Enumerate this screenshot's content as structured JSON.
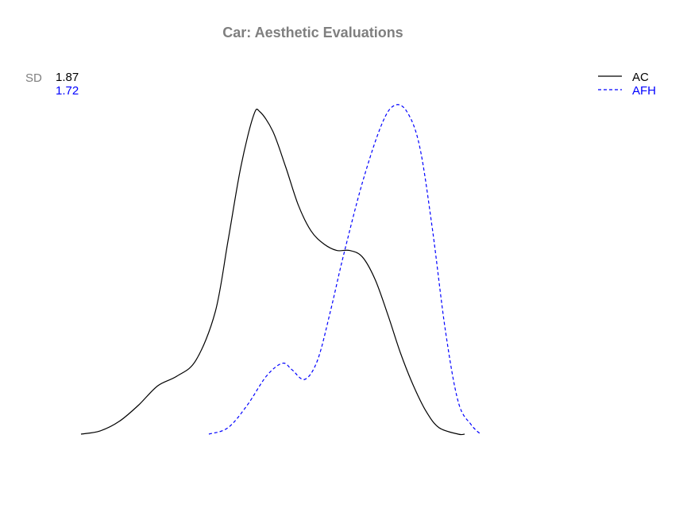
{
  "chart_data": {
    "type": "line",
    "title": "Car: Aesthetic Evaluations",
    "xlabel": "",
    "ylabel": "",
    "grid": false,
    "axes_visible": false,
    "legend_position": "top-right",
    "stat_label": "SD",
    "series": [
      {
        "name": "AC",
        "color": "#000000",
        "line_style": "solid",
        "sd": "1.87",
        "points": [
          [
            0.0,
            0.0
          ],
          [
            0.3,
            0.01
          ],
          [
            0.6,
            0.04
          ],
          [
            0.9,
            0.09
          ],
          [
            1.2,
            0.15
          ],
          [
            1.5,
            0.18
          ],
          [
            1.8,
            0.23
          ],
          [
            2.1,
            0.38
          ],
          [
            2.3,
            0.6
          ],
          [
            2.5,
            0.83
          ],
          [
            2.7,
            0.99
          ],
          [
            2.8,
            1.0
          ],
          [
            3.0,
            0.94
          ],
          [
            3.2,
            0.83
          ],
          [
            3.4,
            0.71
          ],
          [
            3.6,
            0.63
          ],
          [
            3.8,
            0.59
          ],
          [
            4.0,
            0.57
          ],
          [
            4.2,
            0.57
          ],
          [
            4.4,
            0.55
          ],
          [
            4.6,
            0.48
          ],
          [
            4.8,
            0.37
          ],
          [
            5.0,
            0.25
          ],
          [
            5.2,
            0.15
          ],
          [
            5.4,
            0.07
          ],
          [
            5.6,
            0.02
          ],
          [
            5.9,
            0.0
          ],
          [
            6.0,
            0.0
          ]
        ]
      },
      {
        "name": "AFH",
        "color": "#0000ff",
        "line_style": "dashed",
        "sd": "1.72",
        "points": [
          [
            2.0,
            0.0
          ],
          [
            2.3,
            0.02
          ],
          [
            2.6,
            0.09
          ],
          [
            2.9,
            0.18
          ],
          [
            3.15,
            0.22
          ],
          [
            3.3,
            0.2
          ],
          [
            3.5,
            0.17
          ],
          [
            3.7,
            0.23
          ],
          [
            3.9,
            0.38
          ],
          [
            4.1,
            0.55
          ],
          [
            4.4,
            0.78
          ],
          [
            4.7,
            0.96
          ],
          [
            4.9,
            1.02
          ],
          [
            5.1,
            1.0
          ],
          [
            5.3,
            0.89
          ],
          [
            5.5,
            0.63
          ],
          [
            5.7,
            0.32
          ],
          [
            5.9,
            0.1
          ],
          [
            6.1,
            0.03
          ],
          [
            6.25,
            0.0
          ]
        ]
      }
    ]
  }
}
